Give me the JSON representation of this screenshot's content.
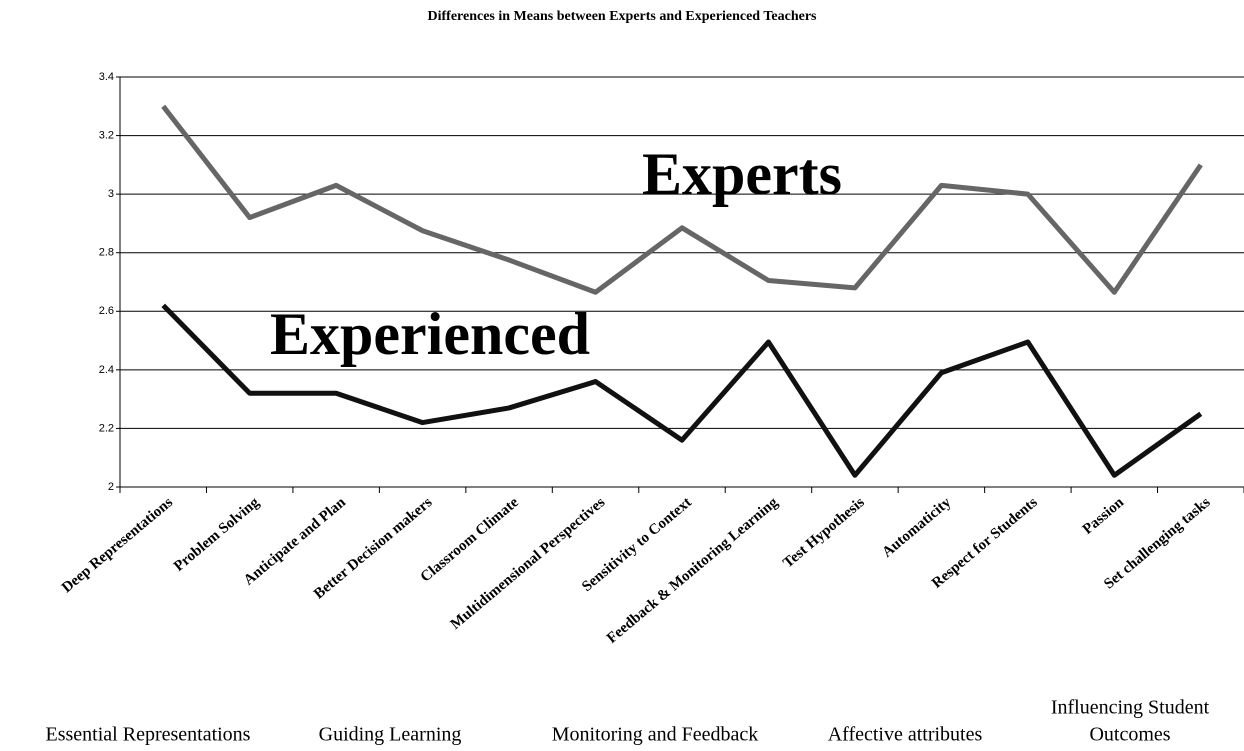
{
  "chart_data": {
    "type": "line",
    "title": "Differences in Means between Experts and Experienced Teachers",
    "categories": [
      "Deep Representations",
      "Problem Solving",
      "Anticipate and Plan",
      "Better Decision makers",
      "Classroom Climate",
      "Multidimensional Perspectives",
      "Sensitivity to Context",
      "Feedback & Monitoring Learning",
      "Test Hypothesis",
      "Automaticity",
      "Respect for Students",
      "Passion",
      "Set challenging tasks"
    ],
    "series": [
      {
        "name": "Experts",
        "color": "#666666",
        "values": [
          3.3,
          2.92,
          3.03,
          2.875,
          2.775,
          2.665,
          2.885,
          2.705,
          2.68,
          3.03,
          3.0,
          2.665,
          3.1
        ]
      },
      {
        "name": "Experienced",
        "color": "#111111",
        "values": [
          2.62,
          2.32,
          2.32,
          2.22,
          2.27,
          2.36,
          2.16,
          2.495,
          2.04,
          2.39,
          2.495,
          2.04,
          2.25
        ]
      }
    ],
    "ylim": [
      2,
      3.4
    ],
    "yticks": [
      2,
      2.2,
      2.4,
      2.6,
      2.8,
      3,
      3.2,
      3.4
    ],
    "grid": true,
    "groups": [
      [
        "Essential Representations"
      ],
      [
        "Guiding Learning"
      ],
      [
        "Monitoring and Feedback"
      ],
      [
        "Affective attributes"
      ],
      [
        "Influencing Student",
        "Outcomes"
      ]
    ]
  }
}
